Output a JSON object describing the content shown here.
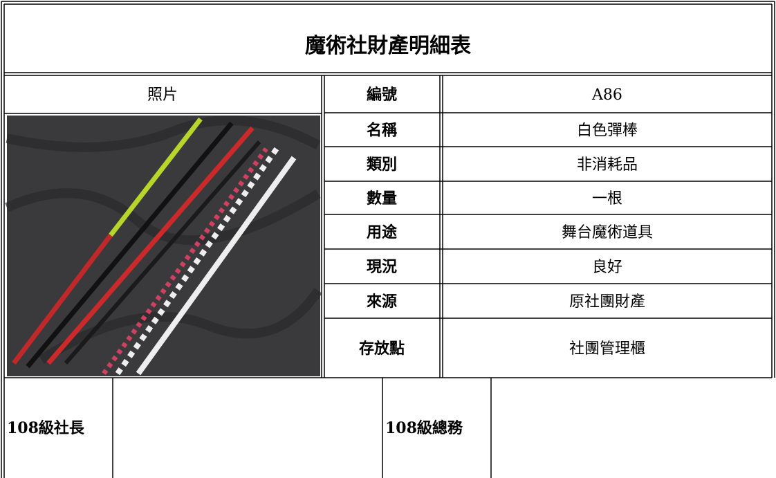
{
  "title": "魔術社財產明細表",
  "photo_header": "照片",
  "fields": [
    {
      "label": "編號",
      "value": "A86"
    },
    {
      "label": "名稱",
      "value": "白色彈棒"
    },
    {
      "label": "類別",
      "value": "非消耗品"
    },
    {
      "label": "數量",
      "value": "一根"
    },
    {
      "label": "用途",
      "value": "舞台魔術道具"
    },
    {
      "label": "現況",
      "value": "良好"
    },
    {
      "label": "來源",
      "value": "原社團財產"
    },
    {
      "label": "存放點",
      "value": "社團管理櫃"
    }
  ],
  "signatures": [
    {
      "label": "108級社長"
    },
    {
      "label": "108級總務"
    }
  ]
}
